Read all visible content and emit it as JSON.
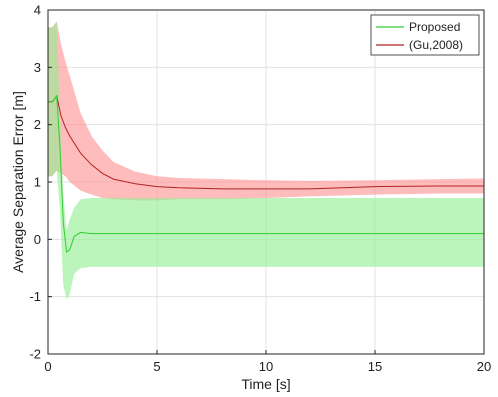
{
  "chart_data": {
    "type": "line",
    "title": "",
    "xlabel": "Time [s]",
    "ylabel": "Average Separation Error [m]",
    "xlim": [
      0,
      20
    ],
    "ylim": [
      -2,
      4
    ],
    "xticks": [
      "0",
      "5",
      "10",
      "15",
      "20"
    ],
    "yticks": [
      "-2",
      "-1",
      "0",
      "1",
      "2",
      "3",
      "4"
    ],
    "grid": true,
    "legend_position": "top-right",
    "series": [
      {
        "name": "Proposed",
        "color": "#33cc33",
        "band_color": "#90ee90",
        "x": [
          0.0,
          0.2,
          0.4,
          0.55,
          0.7,
          0.85,
          1.0,
          1.2,
          1.5,
          2.0,
          3.0,
          5.0,
          10.0,
          15.0,
          20.0
        ],
        "mean": [
          2.4,
          2.4,
          2.5,
          1.6,
          0.3,
          -0.22,
          -0.18,
          0.05,
          0.12,
          0.1,
          0.1,
          0.1,
          0.1,
          0.1,
          0.1
        ],
        "upper": [
          3.7,
          3.7,
          3.8,
          2.2,
          0.8,
          0.15,
          0.35,
          0.55,
          0.7,
          0.72,
          0.72,
          0.72,
          0.72,
          0.72,
          0.72
        ],
        "lower": [
          1.1,
          1.1,
          1.2,
          0.5,
          -0.8,
          -1.05,
          -0.95,
          -0.6,
          -0.5,
          -0.48,
          -0.48,
          -0.48,
          -0.48,
          -0.48,
          -0.48
        ]
      },
      {
        "name": "(Gu,2008)",
        "color": "#b22222",
        "band_color": "#ff9090",
        "x": [
          0.0,
          0.2,
          0.4,
          0.6,
          0.8,
          1.0,
          1.5,
          2.0,
          2.5,
          3.0,
          4.0,
          5.0,
          6.0,
          8.0,
          10.0,
          12.0,
          15.0,
          18.0,
          20.0
        ],
        "mean": [
          2.4,
          2.4,
          2.5,
          2.15,
          1.95,
          1.8,
          1.5,
          1.3,
          1.15,
          1.05,
          0.97,
          0.92,
          0.9,
          0.88,
          0.88,
          0.88,
          0.92,
          0.93,
          0.93
        ],
        "upper": [
          3.7,
          3.7,
          3.8,
          3.4,
          3.1,
          2.85,
          2.2,
          1.8,
          1.55,
          1.35,
          1.18,
          1.1,
          1.07,
          1.05,
          1.03,
          1.02,
          1.03,
          1.05,
          1.06
        ],
        "lower": [
          1.1,
          1.1,
          1.2,
          1.15,
          1.1,
          1.0,
          0.85,
          0.78,
          0.72,
          0.7,
          0.68,
          0.68,
          0.7,
          0.7,
          0.72,
          0.75,
          0.78,
          0.8,
          0.8
        ]
      }
    ]
  }
}
